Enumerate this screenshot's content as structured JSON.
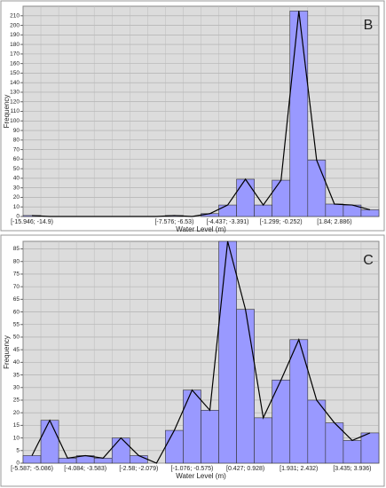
{
  "chart_data": [
    {
      "type": "bar",
      "annotation": "B",
      "xlabel": "Water Level (m)",
      "ylabel": "Frequency",
      "categories": [
        "[-15.946; -14.9)",
        null,
        null,
        null,
        null,
        null,
        null,
        null,
        "[-7.576; -6.53)",
        null,
        null,
        "[-4.437; -3.391)",
        null,
        null,
        "[-1.299; -0.252)",
        null,
        null,
        "[1.84; 2.886)",
        null,
        null
      ],
      "values": [
        1,
        0,
        0,
        0,
        0,
        0,
        0,
        0,
        1,
        0,
        3,
        12,
        39,
        12,
        38,
        215,
        59,
        13,
        12,
        7
      ],
      "color": "#9999ff",
      "frequency_polygon": true,
      "grid": true,
      "ylim": [
        0,
        220
      ],
      "yticks": [
        0,
        10,
        20,
        30,
        40,
        50,
        60,
        70,
        80,
        90,
        100,
        110,
        120,
        130,
        140,
        150,
        160,
        170,
        180,
        190,
        200,
        210
      ]
    },
    {
      "type": "bar",
      "annotation": "C",
      "xlabel": "Water Level (m)",
      "ylabel": "Frequency",
      "categories": [
        "[-5.587; -5.086)",
        null,
        null,
        "[-4.084; -3.583)",
        null,
        null,
        "[-2.58; -2.079)",
        null,
        null,
        "[-1.076; -0.575)",
        null,
        null,
        "[0.427; 0.928)",
        null,
        null,
        "[1.931; 2.432)",
        null,
        null,
        "[3.435; 3.936)",
        null
      ],
      "values": [
        3,
        17,
        2,
        3,
        2,
        10,
        3,
        0,
        13,
        29,
        21,
        88,
        61,
        18,
        33,
        49,
        25,
        16,
        9,
        12
      ],
      "color": "#9999ff",
      "frequency_polygon": true,
      "grid": true,
      "ylim": [
        0,
        88
      ],
      "yticks": [
        0,
        5,
        10,
        15,
        20,
        25,
        30,
        35,
        40,
        45,
        50,
        55,
        60,
        65,
        70,
        75,
        80,
        85
      ]
    }
  ]
}
